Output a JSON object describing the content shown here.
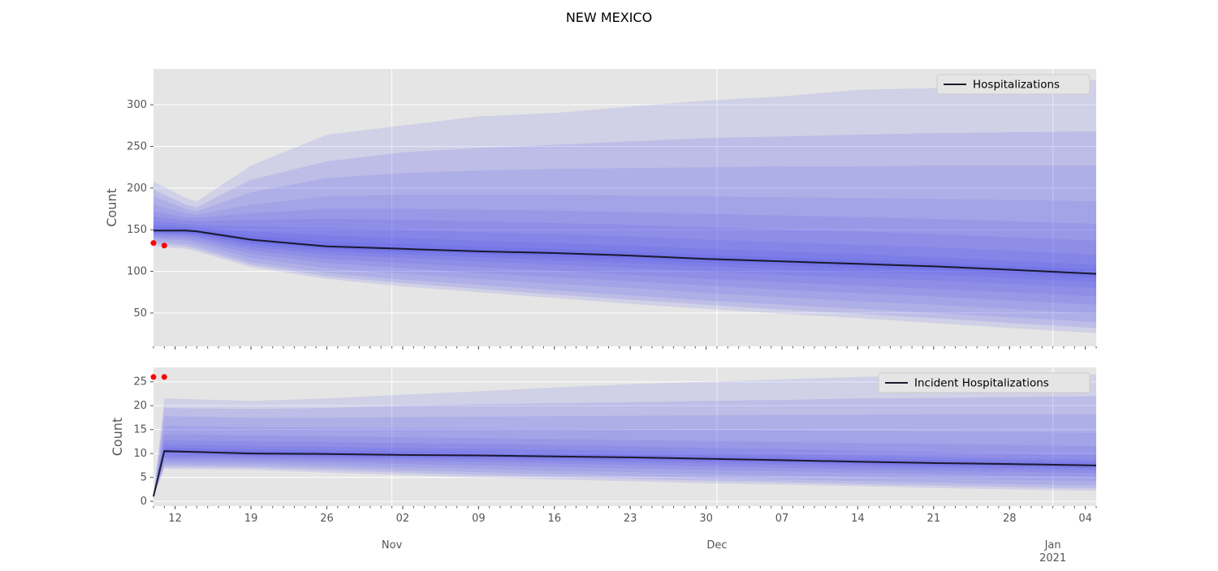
{
  "title": "NEW MEXICO",
  "colors": {
    "panel_bg": "#e5e5e5",
    "grid": "#ffffff",
    "band": "#3b3bf0",
    "median_line": "#1a1a2e",
    "observed": "#ff0000",
    "tick_text": "#555555"
  },
  "x_axis": {
    "day_ticks": [
      {
        "date": "2020-10-12",
        "label": "12"
      },
      {
        "date": "2020-10-19",
        "label": "19"
      },
      {
        "date": "2020-10-26",
        "label": "26"
      },
      {
        "date": "2020-11-02",
        "label": "02"
      },
      {
        "date": "2020-11-09",
        "label": "09"
      },
      {
        "date": "2020-11-16",
        "label": "16"
      },
      {
        "date": "2020-11-23",
        "label": "23"
      },
      {
        "date": "2020-11-30",
        "label": "30"
      },
      {
        "date": "2020-12-07",
        "label": "07"
      },
      {
        "date": "2020-12-14",
        "label": "14"
      },
      {
        "date": "2020-12-21",
        "label": "21"
      },
      {
        "date": "2020-12-28",
        "label": "28"
      },
      {
        "date": "2021-01-04",
        "label": "04"
      }
    ],
    "month_ticks": [
      {
        "date": "2020-11-01",
        "label": "Nov",
        "sublabel": ""
      },
      {
        "date": "2020-12-01",
        "label": "Dec",
        "sublabel": ""
      },
      {
        "date": "2021-01-01",
        "label": "Jan",
        "sublabel": "2021"
      }
    ],
    "range": [
      "2020-10-10",
      "2021-01-05"
    ]
  },
  "chart_data": [
    {
      "type": "area",
      "panel": "top",
      "ylabel": "Count",
      "ylim": [
        10,
        343
      ],
      "yticks": [
        50,
        100,
        150,
        200,
        250,
        300
      ],
      "grid": true,
      "legend": {
        "placement": "top-right",
        "entries": [
          "Hospitalizations"
        ]
      },
      "x": [
        "2020-10-10",
        "2020-10-13",
        "2020-10-14",
        "2020-10-19",
        "2020-10-26",
        "2020-11-02",
        "2020-11-09",
        "2020-11-16",
        "2020-11-23",
        "2020-11-30",
        "2020-12-07",
        "2020-12-14",
        "2020-12-21",
        "2020-12-28",
        "2021-01-05"
      ],
      "median": [
        149,
        149,
        148,
        138,
        130,
        127,
        124,
        122,
        119,
        115,
        112,
        109,
        106,
        102,
        97
      ],
      "bands": [
        {
          "level": 98,
          "lower": [
            130,
            127,
            124,
            105,
            91,
            82,
            75,
            68,
            61,
            55,
            49,
            44,
            38,
            32,
            26
          ],
          "upper": [
            208,
            188,
            184,
            227,
            264,
            275,
            286,
            290,
            298,
            305,
            310,
            318,
            320,
            324,
            330
          ]
        },
        {
          "level": 95,
          "lower": [
            133,
            130,
            127,
            108,
            94,
            86,
            79,
            72,
            66,
            60,
            54,
            49,
            44,
            38,
            32
          ],
          "upper": [
            198,
            180,
            177,
            210,
            232,
            243,
            248,
            252,
            256,
            260,
            262,
            264,
            266,
            267,
            268
          ]
        },
        {
          "level": 90,
          "lower": [
            136,
            133,
            130,
            111,
            98,
            90,
            84,
            77,
            71,
            65,
            60,
            55,
            50,
            45,
            39
          ],
          "upper": [
            190,
            175,
            172,
            195,
            212,
            218,
            221,
            223,
            224,
            225,
            226,
            226,
            227,
            227,
            227
          ]
        },
        {
          "level": 80,
          "lower": [
            139,
            137,
            134,
            116,
            104,
            97,
            91,
            85,
            80,
            74,
            69,
            64,
            60,
            55,
            49
          ],
          "upper": [
            180,
            170,
            168,
            180,
            190,
            192,
            192,
            192,
            191,
            190,
            189,
            188,
            187,
            186,
            184
          ]
        },
        {
          "level": 70,
          "lower": [
            141,
            139,
            137,
            121,
            110,
            104,
            98,
            93,
            88,
            83,
            78,
            74,
            70,
            65,
            60
          ],
          "upper": [
            172,
            165,
            164,
            170,
            175,
            175,
            174,
            173,
            171,
            169,
            167,
            165,
            163,
            160,
            157
          ]
        },
        {
          "level": 60,
          "lower": [
            143,
            142,
            140,
            125,
            115,
            110,
            105,
            101,
            96,
            91,
            87,
            83,
            79,
            75,
            70
          ],
          "upper": [
            166,
            161,
            160,
            162,
            163,
            162,
            160,
            158,
            156,
            153,
            150,
            148,
            145,
            141,
            137
          ]
        },
        {
          "level": 50,
          "lower": [
            145,
            144,
            142,
            129,
            120,
            116,
            112,
            108,
            104,
            100,
            96,
            92,
            89,
            85,
            80
          ],
          "upper": [
            160,
            157,
            156,
            154,
            152,
            150,
            147,
            145,
            142,
            138,
            135,
            132,
            129,
            125,
            120
          ]
        },
        {
          "level": 40,
          "lower": [
            146,
            145,
            144,
            132,
            124,
            120,
            117,
            113,
            110,
            106,
            102,
            99,
            96,
            92,
            87
          ],
          "upper": [
            156,
            154,
            153,
            148,
            143,
            140,
            137,
            134,
            131,
            127,
            124,
            121,
            117,
            113,
            108
          ]
        },
        {
          "level": 30,
          "lower": [
            147,
            146,
            145,
            134,
            127,
            123,
            120,
            117,
            114,
            110,
            107,
            104,
            101,
            97,
            92
          ],
          "upper": [
            153,
            152,
            151,
            143,
            136,
            133,
            130,
            127,
            124,
            120,
            117,
            114,
            111,
            107,
            102
          ]
        },
        {
          "level": 20,
          "lower": [
            148,
            147,
            146,
            136,
            128,
            125,
            122,
            120,
            117,
            113,
            110,
            107,
            104,
            100,
            95
          ],
          "upper": [
            151,
            151,
            150,
            140,
            132,
            129,
            126,
            124,
            121,
            117,
            114,
            111,
            108,
            104,
            99
          ]
        }
      ],
      "observed": [
        {
          "x": "2020-10-10",
          "y": 134
        },
        {
          "x": "2020-10-11",
          "y": 131
        }
      ]
    },
    {
      "type": "area",
      "panel": "bottom",
      "ylabel": "Count",
      "ylim": [
        -1,
        28
      ],
      "yticks": [
        0,
        5,
        10,
        15,
        20,
        25
      ],
      "grid": true,
      "legend": {
        "placement": "top-right",
        "entries": [
          "Incident Hospitalizations"
        ]
      },
      "x": [
        "2020-10-10",
        "2020-10-11",
        "2020-10-19",
        "2020-10-26",
        "2020-11-02",
        "2020-11-09",
        "2020-11-16",
        "2020-11-23",
        "2020-11-30",
        "2020-12-07",
        "2020-12-14",
        "2020-12-21",
        "2020-12-28",
        "2021-01-05"
      ],
      "median": [
        1,
        10.5,
        10.0,
        9.9,
        9.7,
        9.6,
        9.4,
        9.2,
        8.9,
        8.6,
        8.3,
        8.0,
        7.8,
        7.5
      ],
      "bands": [
        {
          "level": 98,
          "lower": [
            1,
            6.8,
            6.6,
            6.0,
            5.5,
            5.0,
            4.6,
            4.2,
            3.8,
            3.5,
            3.2,
            2.8,
            2.5,
            2.2
          ],
          "upper": [
            1,
            21.5,
            21.0,
            21.5,
            22.3,
            23.0,
            23.8,
            24.5,
            25.0,
            25.5,
            26.0,
            26.2,
            26.5,
            26.5
          ]
        },
        {
          "level": 95,
          "lower": [
            1,
            7.2,
            7.0,
            6.5,
            6.0,
            5.5,
            5.1,
            4.7,
            4.3,
            4.0,
            3.6,
            3.3,
            3.0,
            2.7
          ],
          "upper": [
            1,
            19.5,
            19.3,
            19.5,
            20.0,
            20.3,
            20.5,
            20.7,
            21.0,
            21.2,
            21.5,
            21.6,
            21.8,
            22.0
          ]
        },
        {
          "level": 90,
          "lower": [
            1,
            7.6,
            7.4,
            7.0,
            6.5,
            6.1,
            5.7,
            5.3,
            4.9,
            4.6,
            4.2,
            3.9,
            3.6,
            3.3
          ],
          "upper": [
            1,
            17.8,
            17.5,
            17.5,
            17.6,
            17.7,
            17.8,
            17.9,
            18.0,
            18.1,
            18.1,
            18.2,
            18.2,
            18.2
          ]
        },
        {
          "level": 80,
          "lower": [
            1,
            8.0,
            7.9,
            7.5,
            7.1,
            6.8,
            6.4,
            6.1,
            5.7,
            5.4,
            5.1,
            4.8,
            4.5,
            4.2
          ],
          "upper": [
            1,
            15.8,
            15.5,
            15.4,
            15.3,
            15.2,
            15.1,
            15.0,
            14.9,
            14.8,
            14.7,
            14.6,
            14.5,
            14.3
          ]
        },
        {
          "level": 70,
          "lower": [
            1,
            8.5,
            8.4,
            8.1,
            7.8,
            7.5,
            7.2,
            6.9,
            6.6,
            6.3,
            6.0,
            5.7,
            5.4,
            5.1
          ],
          "upper": [
            1,
            14.0,
            13.8,
            13.6,
            13.4,
            13.2,
            13.0,
            12.8,
            12.6,
            12.4,
            12.2,
            12.0,
            11.8,
            11.5
          ]
        },
        {
          "level": 60,
          "lower": [
            1,
            9.0,
            8.9,
            8.6,
            8.4,
            8.2,
            7.9,
            7.6,
            7.3,
            7.0,
            6.7,
            6.4,
            6.2,
            5.9
          ],
          "upper": [
            1,
            12.8,
            12.6,
            12.4,
            12.2,
            12.0,
            11.8,
            11.5,
            11.2,
            10.9,
            10.6,
            10.3,
            10.0,
            9.7
          ]
        },
        {
          "level": 50,
          "lower": [
            1,
            9.4,
            9.3,
            9.1,
            8.9,
            8.7,
            8.5,
            8.2,
            7.9,
            7.6,
            7.3,
            7.0,
            6.8,
            6.5
          ],
          "upper": [
            1,
            11.9,
            11.6,
            11.4,
            11.2,
            11.0,
            10.8,
            10.5,
            10.2,
            9.9,
            9.6,
            9.3,
            9.0,
            8.7
          ]
        },
        {
          "level": 40,
          "lower": [
            1,
            9.8,
            9.6,
            9.4,
            9.2,
            9.0,
            8.8,
            8.6,
            8.3,
            8.0,
            7.7,
            7.4,
            7.2,
            6.9
          ],
          "upper": [
            1,
            11.3,
            10.9,
            10.7,
            10.5,
            10.3,
            10.1,
            9.9,
            9.6,
            9.3,
            9.0,
            8.7,
            8.5,
            8.2
          ]
        },
        {
          "level": 30,
          "lower": [
            1,
            10.1,
            9.8,
            9.6,
            9.4,
            9.3,
            9.1,
            8.9,
            8.6,
            8.3,
            8.0,
            7.7,
            7.5,
            7.2
          ],
          "upper": [
            1,
            10.9,
            10.5,
            10.3,
            10.1,
            9.9,
            9.7,
            9.5,
            9.2,
            8.9,
            8.6,
            8.3,
            8.1,
            7.8
          ]
        },
        {
          "level": 20,
          "lower": [
            1,
            10.3,
            9.9,
            9.8,
            9.6,
            9.5,
            9.3,
            9.1,
            8.8,
            8.5,
            8.2,
            7.9,
            7.7,
            7.4
          ],
          "upper": [
            1,
            10.7,
            10.2,
            10.1,
            9.9,
            9.7,
            9.5,
            9.3,
            9.0,
            8.7,
            8.4,
            8.1,
            7.9,
            7.6
          ]
        }
      ],
      "observed": [
        {
          "x": "2020-10-10",
          "y": 26
        },
        {
          "x": "2020-10-11",
          "y": 26
        }
      ]
    }
  ]
}
